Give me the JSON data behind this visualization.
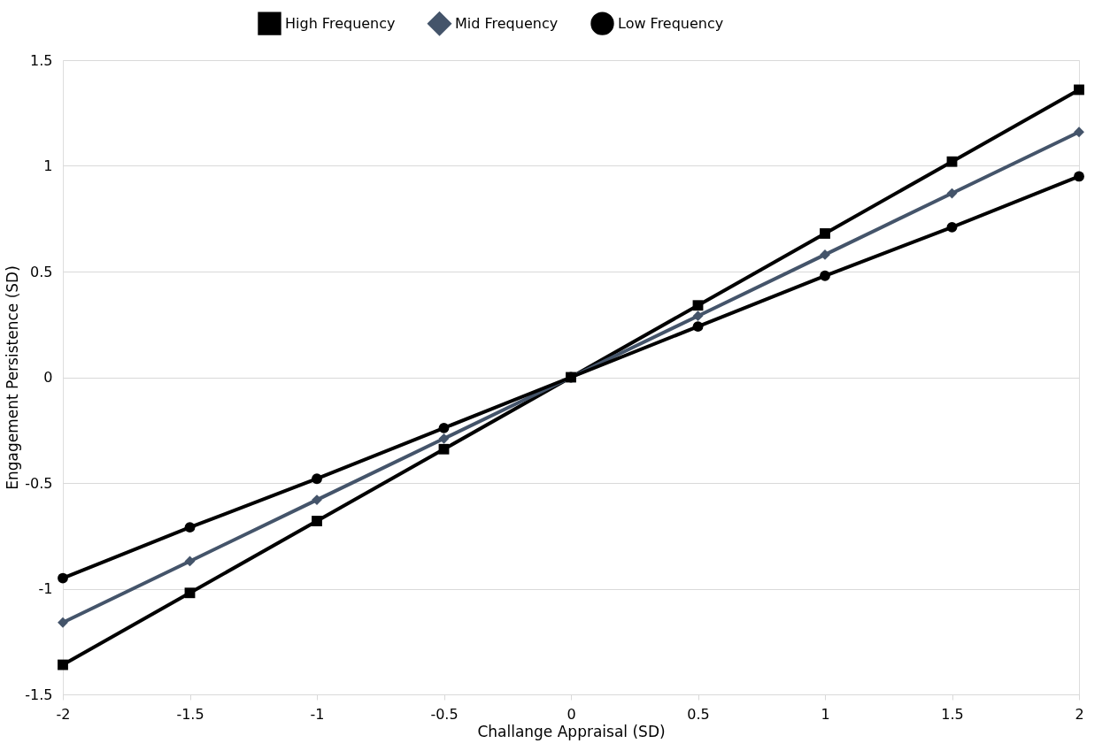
{
  "chart_data": {
    "type": "line",
    "xlabel": "Challange Appraisal (SD)",
    "ylabel": "Engagement Persistence (SD)",
    "x": [
      -2,
      -1.5,
      -1,
      -0.5,
      0,
      0.5,
      1,
      1.5,
      2
    ],
    "xlim": [
      -2,
      2
    ],
    "xticks": [
      -2,
      -1.5,
      -1,
      -0.5,
      0,
      0.5,
      1,
      1.5,
      2
    ],
    "ylim": [
      -1.5,
      1.5
    ],
    "yticks": [
      -1.5,
      -1,
      -0.5,
      0,
      0.5,
      1,
      1.5
    ],
    "grid": "y",
    "legend": "top",
    "line_style": "solid",
    "series": [
      {
        "name": "High Frequency",
        "color": "#000000",
        "marker": "square",
        "values": [
          -1.36,
          -1.02,
          -0.68,
          -0.34,
          0,
          0.34,
          0.68,
          1.02,
          1.36
        ]
      },
      {
        "name": "Mid Frequency",
        "color": "#44546a",
        "marker": "diamond",
        "values": [
          -1.16,
          -0.87,
          -0.58,
          -0.29,
          0,
          0.29,
          0.58,
          0.87,
          1.16
        ]
      },
      {
        "name": "Low Frequency",
        "color": "#000000",
        "marker": "circle",
        "values": [
          -0.95,
          -0.71,
          -0.48,
          -0.24,
          0,
          0.24,
          0.48,
          0.71,
          0.95
        ]
      }
    ]
  }
}
